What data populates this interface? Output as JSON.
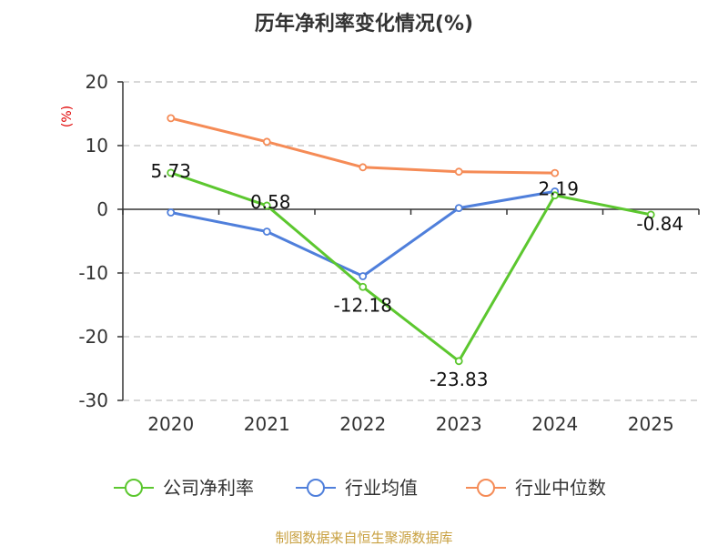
{
  "chart_data": {
    "type": "line",
    "title": "历年净利率变化情况(%)",
    "ylabel": "(%)",
    "xlabel": "",
    "categories": [
      "2020",
      "2021",
      "2022",
      "2023",
      "2024",
      "2025"
    ],
    "ylim": [
      -30,
      20
    ],
    "yticks": [
      20,
      10,
      0,
      -10,
      -20,
      -30
    ],
    "grid": true,
    "legend_position": "bottom",
    "series": [
      {
        "name": "公司净利率",
        "color": "#5cc72f",
        "values": [
          5.73,
          0.58,
          -12.18,
          -23.83,
          2.19,
          -0.84
        ],
        "labels": [
          "5.73",
          "0.58",
          "-12.18",
          "-23.83",
          "2.19",
          "-0.84"
        ]
      },
      {
        "name": "行业均值",
        "color": "#4f7fdb",
        "values": [
          -0.5,
          -3.5,
          -10.5,
          0.2,
          2.8,
          null
        ]
      },
      {
        "name": "行业中位数",
        "color": "#f58b56",
        "values": [
          14.3,
          10.6,
          6.6,
          5.9,
          5.7,
          null
        ]
      }
    ]
  },
  "source": "制图数据来自恒生聚源数据库"
}
